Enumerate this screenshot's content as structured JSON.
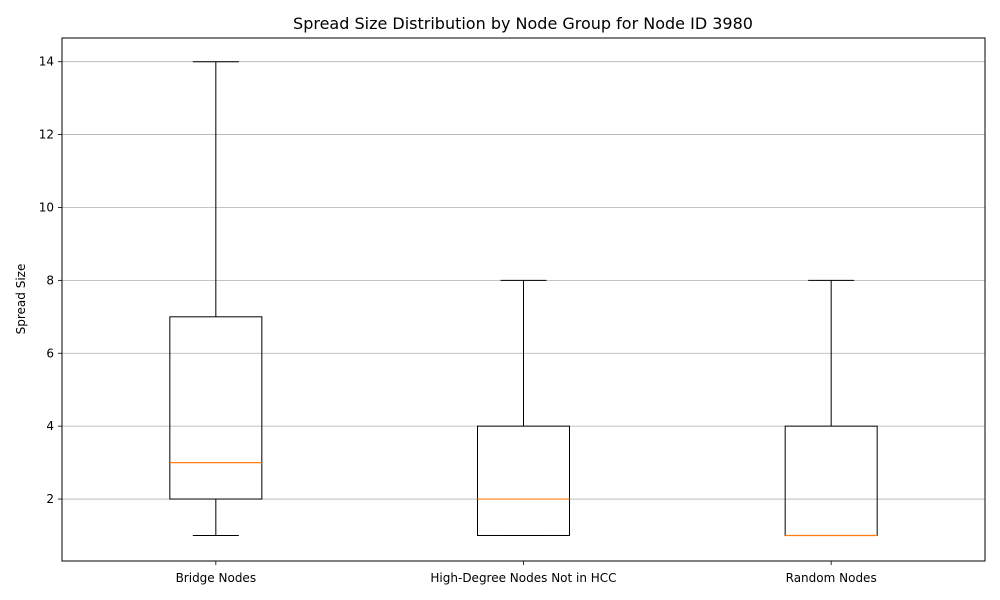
{
  "chart_data": {
    "type": "box",
    "title": "Spread Size Distribution by Node Group for Node ID 3980",
    "xlabel": "",
    "ylabel": "Spread Size",
    "ylim": [
      0.3,
      14.65
    ],
    "yticks": [
      2,
      4,
      6,
      8,
      10,
      12,
      14
    ],
    "grid": "y",
    "categories": [
      "Bridge Nodes",
      "High-Degree Nodes Not in HCC",
      "Random Nodes"
    ],
    "boxes": [
      {
        "whisker_low": 1,
        "q1": 2,
        "median": 3,
        "q3": 7,
        "whisker_high": 14
      },
      {
        "whisker_low": 1,
        "q1": 1,
        "median": 2,
        "q3": 4,
        "whisker_high": 8
      },
      {
        "whisker_low": 1,
        "q1": 1,
        "median": 1,
        "q3": 4,
        "whisker_high": 8
      }
    ],
    "colors": {
      "box": "#000000",
      "median": "#ff7f0e",
      "grid": "#b0b0b0"
    }
  }
}
